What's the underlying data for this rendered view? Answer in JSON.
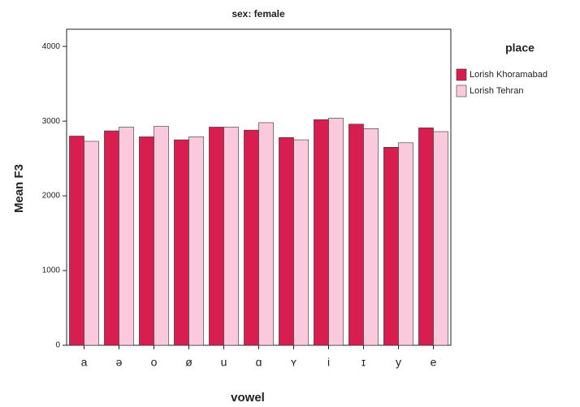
{
  "chart_data": {
    "type": "bar",
    "title": "sex: female",
    "x_label": "vowel",
    "y_label": "Mean F3",
    "legend_title": "place",
    "categories": [
      "a",
      "ə",
      "o",
      "ø",
      "u",
      "ɑ",
      "ʏ",
      "i",
      "ɪ",
      "y",
      "e"
    ],
    "series": [
      {
        "name": "Lorish Khoramabad",
        "color": "#d81e4e",
        "values": [
          2800,
          2870,
          2790,
          2750,
          2920,
          2880,
          2780,
          3020,
          2960,
          2650,
          2910
        ]
      },
      {
        "name": "Lorish Tehran",
        "color": "#fbc9dc",
        "values": [
          2730,
          2920,
          2930,
          2790,
          2920,
          2980,
          2750,
          3040,
          2900,
          2710,
          2860
        ]
      }
    ],
    "ylim": [
      0,
      4230
    ],
    "yticks": [
      0,
      1000,
      2000,
      3000,
      4000
    ],
    "legend": "right"
  }
}
